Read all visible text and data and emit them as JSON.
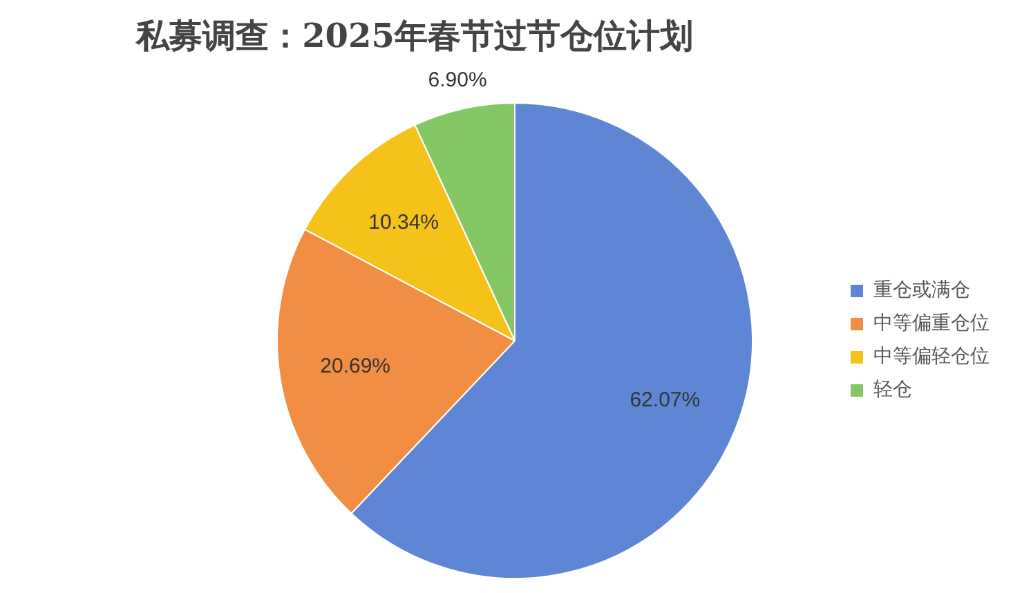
{
  "chart_data": {
    "type": "pie",
    "title": "私募调查：2025年春节过节仓位计划",
    "categories": [
      "重仓或满仓",
      "中等偏重仓位",
      "中等偏轻仓位",
      "轻仓"
    ],
    "values": [
      62.07,
      20.69,
      10.34,
      6.9
    ],
    "colors": [
      "#5f86d4",
      "#f28e44",
      "#f5c21a",
      "#86c765"
    ],
    "value_labels": [
      "62.07%",
      "20.69%",
      "10.34%",
      "6.90%"
    ],
    "legend": "right"
  }
}
